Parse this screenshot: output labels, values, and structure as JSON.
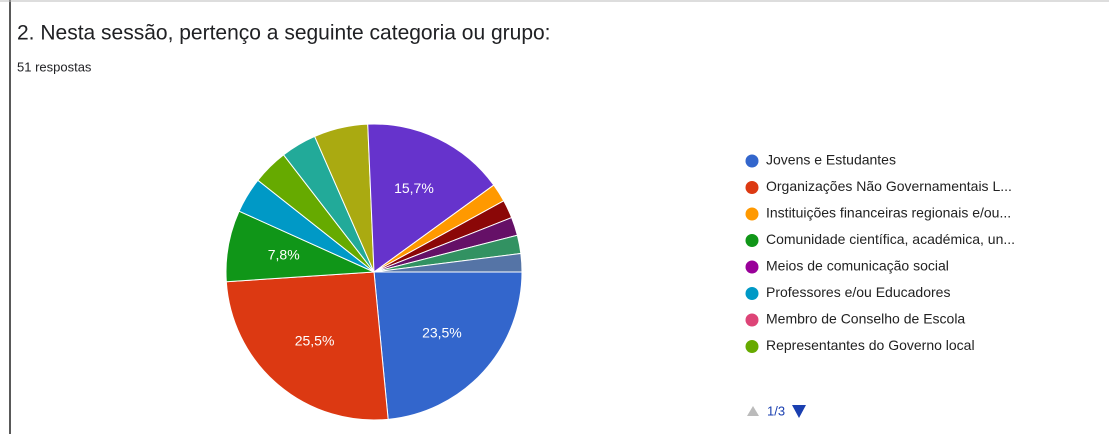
{
  "chart_data": {
    "type": "pie",
    "title": "2. Nesta sessão, pertenço a seguinte categoria ou grupo:",
    "subtitle": "51 respostas",
    "values": [
      23.5,
      25.5,
      7.8,
      3.9,
      3.9,
      3.9,
      5.9,
      15.7,
      2,
      2,
      2,
      2,
      2
    ],
    "value_labels": [
      "23,5%",
      "25,5%",
      "7,8%",
      null,
      null,
      null,
      null,
      "15,7%",
      null,
      null,
      null,
      null,
      null
    ],
    "colors": [
      "#3366cc",
      "#dc3912",
      "#109618",
      "#0099c6",
      "#66aa00",
      "#22aa99",
      "#aaaa11",
      "#6633cc",
      "#ff9900",
      "#8b0707",
      "#651067",
      "#329262",
      "#5574a6"
    ],
    "legend": [
      {
        "name": "Jovens e Estudantes",
        "color": "#3366cc"
      },
      {
        "name": "Organizações Não Governamentais L...",
        "color": "#dc3912"
      },
      {
        "name": "Instituições financeiras regionais e/ou...",
        "color": "#ff9900"
      },
      {
        "name": "Comunidade científica, académica, un...",
        "color": "#109618"
      },
      {
        "name": "Meios de comunicação social",
        "color": "#990099"
      },
      {
        "name": "Professores e/ou Educadores",
        "color": "#0099c6"
      },
      {
        "name": "Membro de Conselho de Escola",
        "color": "#dd4477"
      },
      {
        "name": "Representantes do Governo local",
        "color": "#66aa00"
      }
    ],
    "page_indicator": "1/3"
  }
}
